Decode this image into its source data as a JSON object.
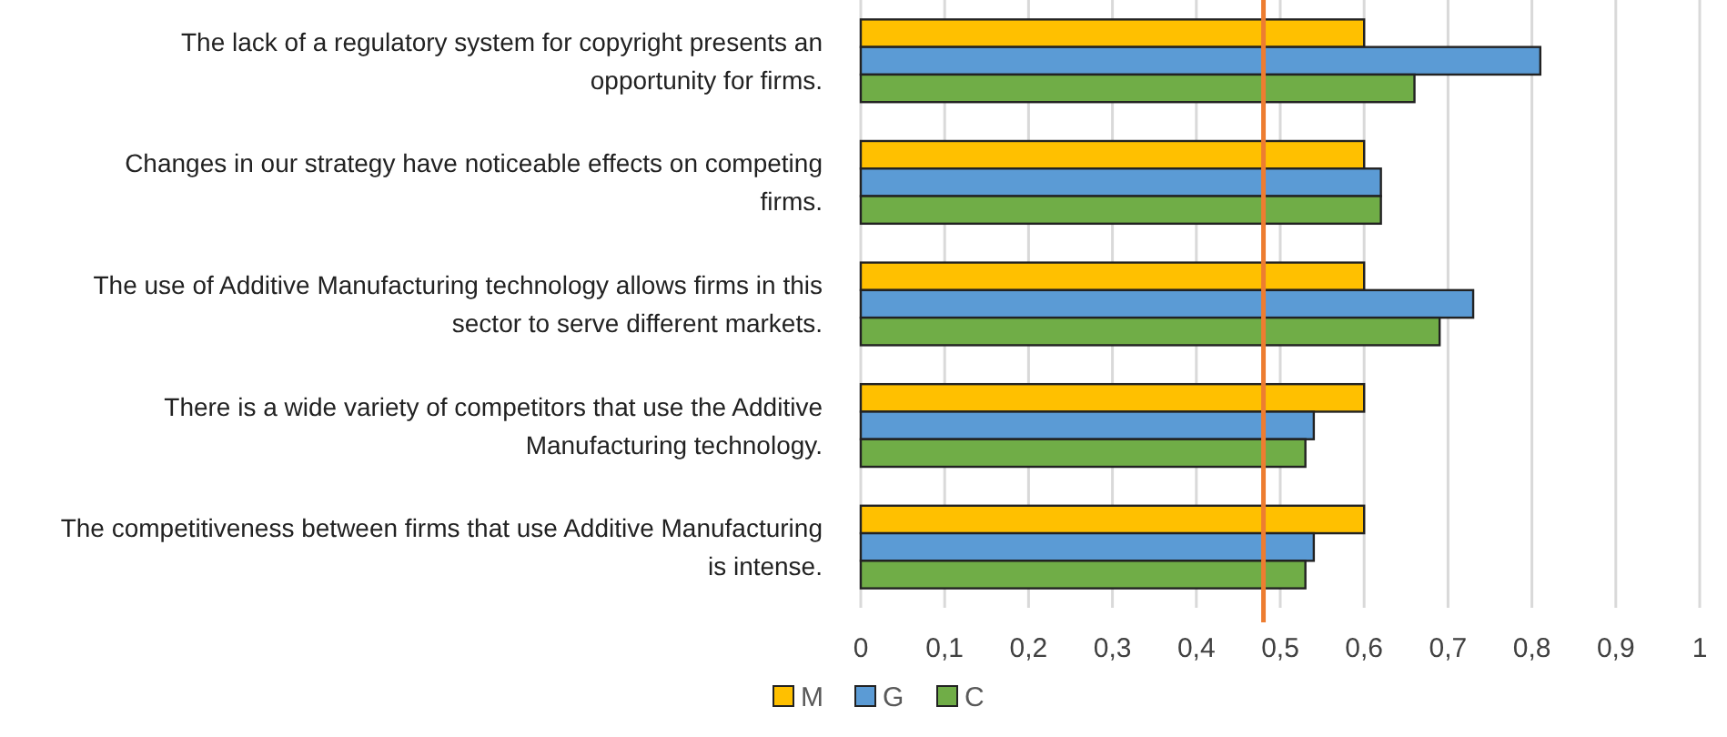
{
  "chart_data": {
    "type": "bar",
    "orientation": "horizontal",
    "categories": [
      "The lack of a regulatory system for copyright presents an opportunity for firms.",
      "Changes in our strategy have noticeable effects on competing firms.",
      "The use of Additive Manufacturing technology allows firms in this sector to serve different markets.",
      "There is a wide variety of competitors that use the Additive Manufacturing technology.",
      "The competitiveness between firms that use Additive Manufacturing is intense."
    ],
    "series": [
      {
        "name": "M",
        "color": "#ffc000",
        "values": [
          0.6,
          0.6,
          0.6,
          0.6,
          0.6
        ]
      },
      {
        "name": "G",
        "color": "#5b9bd5",
        "values": [
          0.81,
          0.62,
          0.73,
          0.54,
          0.54
        ]
      },
      {
        "name": "C",
        "color": "#70ad47",
        "values": [
          0.66,
          0.62,
          0.69,
          0.53,
          0.53
        ]
      }
    ],
    "xlim": [
      0,
      1
    ],
    "xticks": [
      0,
      {
        "value": 0.1,
        "label": "0,1"
      },
      {
        "value": 0.2,
        "label": "0,2"
      },
      {
        "value": 0.3,
        "label": "0,3"
      },
      {
        "value": 0.4,
        "label": "0,4"
      },
      {
        "value": 0.5,
        "label": "0,5"
      },
      {
        "value": 0.6,
        "label": "0,6"
      },
      {
        "value": 0.7,
        "label": "0,7"
      },
      {
        "value": 0.8,
        "label": "0,8"
      },
      {
        "value": 0.9,
        "label": "0,9"
      },
      1
    ],
    "ref_lines": [
      {
        "axis": "x",
        "value": 0.48,
        "color": "#ed7d31"
      }
    ],
    "grid": "x",
    "legend": "bottom"
  }
}
